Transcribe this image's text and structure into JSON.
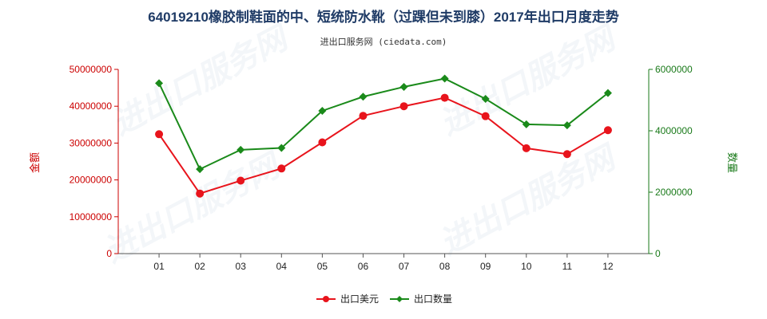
{
  "chart_data": {
    "type": "line",
    "title": "64019210橡胶制鞋面的中、短统防水靴（过踝但未到膝）2017年出口月度走势",
    "subtitle": "进出口服务网 (ciedata.com)",
    "categories": [
      "01",
      "02",
      "03",
      "04",
      "05",
      "06",
      "07",
      "08",
      "09",
      "10",
      "11",
      "12"
    ],
    "y_left": {
      "label": "金额",
      "ylim": [
        0,
        50000000
      ],
      "ticks": [
        "0",
        "10000000",
        "20000000",
        "30000000",
        "40000000",
        "50000000"
      ],
      "tick_values": [
        0,
        10000000,
        20000000,
        30000000,
        40000000,
        50000000
      ],
      "color": "#cc0000"
    },
    "y_right": {
      "label": "数量",
      "ylim": [
        0,
        6000000
      ],
      "ticks": [
        "0",
        "2000000",
        "4000000",
        "6000000"
      ],
      "tick_values": [
        0,
        2000000,
        4000000,
        6000000
      ],
      "color": "#1a7a1a"
    },
    "series": [
      {
        "name": "出口美元",
        "axis": "left",
        "color": "#e8141c",
        "marker": "circle",
        "values": [
          32400000,
          16300000,
          19800000,
          23100000,
          30200000,
          37400000,
          40000000,
          42300000,
          37300000,
          28600000,
          27000000,
          33500000
        ]
      },
      {
        "name": "出口数量",
        "axis": "right",
        "color": "#1a8a1a",
        "marker": "diamond",
        "values": [
          5550000,
          2750000,
          3380000,
          3440000,
          4650000,
          5110000,
          5430000,
          5700000,
          5040000,
          4210000,
          4180000,
          5230000
        ]
      }
    ],
    "legend_position": "bottom-center",
    "grid": false
  },
  "watermark": "进出口服务网"
}
